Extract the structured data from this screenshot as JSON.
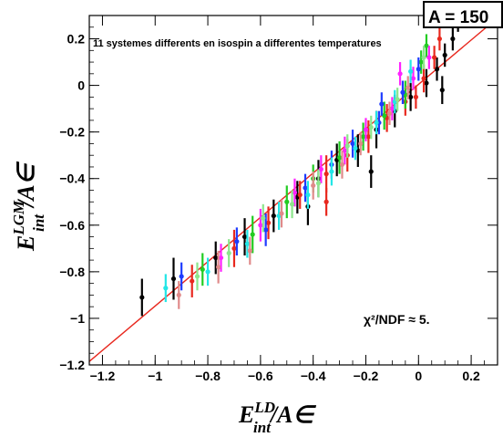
{
  "chart_data": {
    "type": "scatter",
    "title_box": "A = 150",
    "subtitle": "11 systemes differents en isospin a differentes temperatures",
    "fit_annotation": "χ²/NDF ≈ 5.",
    "xlabel": {
      "main": "E",
      "sup": "LD",
      "sub": "int",
      "rest": "/A∈"
    },
    "ylabel": {
      "main": "E",
      "sup": "LGM",
      "sub": "int",
      "rest": "/A∈"
    },
    "xlim": [
      -1.25,
      0.3
    ],
    "ylim": [
      -1.2,
      0.3
    ],
    "xticks": [
      {
        "v": -1.2,
        "label": "−1.2"
      },
      {
        "v": -1.0,
        "label": "−1"
      },
      {
        "v": -0.8,
        "label": "−0.8"
      },
      {
        "v": -0.6,
        "label": "−0.6"
      },
      {
        "v": -0.4,
        "label": "−0.4"
      },
      {
        "v": -0.2,
        "label": "−0.2"
      },
      {
        "v": 0.0,
        "label": "0"
      },
      {
        "v": 0.2,
        "label": "0.2"
      }
    ],
    "yticks": [
      {
        "v": -1.2,
        "label": "−1.2"
      },
      {
        "v": -1.0,
        "label": "−1"
      },
      {
        "v": -0.8,
        "label": "−0.8"
      },
      {
        "v": -0.6,
        "label": "−0.6"
      },
      {
        "v": -0.4,
        "label": "−0.4"
      },
      {
        "v": -0.2,
        "label": "−0.2"
      },
      {
        "v": 0.0,
        "label": "0"
      },
      {
        "v": 0.2,
        "label": "0.2"
      }
    ],
    "fit_line": {
      "color": "#e8281e",
      "x": [
        -1.25,
        0.3
      ],
      "y": [
        -1.185,
        0.29
      ]
    },
    "series": [
      {
        "color": "#000000",
        "points": [
          {
            "x": -1.05,
            "y": -0.91,
            "err": 0.08
          },
          {
            "x": -0.93,
            "y": -0.83,
            "err": 0.09
          },
          {
            "x": -0.77,
            "y": -0.74,
            "err": 0.07
          },
          {
            "x": -0.66,
            "y": -0.65,
            "err": 0.08
          },
          {
            "x": -0.55,
            "y": -0.56,
            "err": 0.07
          },
          {
            "x": -0.46,
            "y": -0.48,
            "err": 0.07
          },
          {
            "x": -0.38,
            "y": -0.4,
            "err": 0.08
          },
          {
            "x": -0.31,
            "y": -0.32,
            "err": 0.07
          },
          {
            "x": -0.23,
            "y": -0.28,
            "err": 0.07
          },
          {
            "x": -0.16,
            "y": -0.19,
            "err": 0.08
          },
          {
            "x": -0.09,
            "y": -0.11,
            "err": 0.07
          },
          {
            "x": -0.03,
            "y": -0.05,
            "err": 0.06
          },
          {
            "x": 0.03,
            "y": 0.01,
            "err": 0.06
          },
          {
            "x": 0.07,
            "y": 0.07,
            "err": 0.05
          },
          {
            "x": 0.1,
            "y": 0.13,
            "err": 0.05
          },
          {
            "x": 0.13,
            "y": 0.2,
            "err": 0.05
          },
          {
            "x": 0.15,
            "y": 0.27,
            "err": 0.04
          },
          {
            "x": 0.09,
            "y": -0.02,
            "err": 0.06
          },
          {
            "x": -0.18,
            "y": -0.37,
            "err": 0.07
          },
          {
            "x": -0.42,
            "y": -0.52,
            "err": 0.08
          }
        ]
      },
      {
        "color": "#e8281e",
        "points": [
          {
            "x": -0.86,
            "y": -0.84,
            "err": 0.07
          },
          {
            "x": -0.7,
            "y": -0.7,
            "err": 0.08
          },
          {
            "x": -0.57,
            "y": -0.59,
            "err": 0.07
          },
          {
            "x": -0.45,
            "y": -0.47,
            "err": 0.06
          },
          {
            "x": -0.35,
            "y": -0.38,
            "err": 0.08
          },
          {
            "x": -0.27,
            "y": -0.3,
            "err": 0.07
          },
          {
            "x": -0.19,
            "y": -0.22,
            "err": 0.07
          },
          {
            "x": -0.12,
            "y": -0.14,
            "err": 0.06
          },
          {
            "x": -0.05,
            "y": -0.07,
            "err": 0.06
          },
          {
            "x": 0.02,
            "y": 0.03,
            "err": 0.06
          },
          {
            "x": 0.06,
            "y": 0.12,
            "err": 0.05
          },
          {
            "x": 0.08,
            "y": 0.2,
            "err": 0.05
          },
          {
            "x": -0.01,
            "y": -0.05,
            "err": 0.05
          },
          {
            "x": -0.35,
            "y": -0.5,
            "err": 0.06
          }
        ]
      },
      {
        "color": "#22cc22",
        "points": [
          {
            "x": -0.82,
            "y": -0.79,
            "err": 0.07
          },
          {
            "x": -0.63,
            "y": -0.64,
            "err": 0.08
          },
          {
            "x": -0.5,
            "y": -0.5,
            "err": 0.07
          },
          {
            "x": -0.4,
            "y": -0.4,
            "err": 0.06
          },
          {
            "x": -0.3,
            "y": -0.31,
            "err": 0.07
          },
          {
            "x": -0.21,
            "y": -0.22,
            "err": 0.06
          },
          {
            "x": -0.13,
            "y": -0.13,
            "err": 0.06
          },
          {
            "x": -0.05,
            "y": -0.04,
            "err": 0.06
          },
          {
            "x": 0.01,
            "y": 0.1,
            "err": 0.05
          },
          {
            "x": 0.03,
            "y": 0.17,
            "err": 0.05
          }
        ]
      },
      {
        "color": "#1e3cff",
        "points": [
          {
            "x": -0.9,
            "y": -0.82,
            "err": 0.06
          },
          {
            "x": -0.69,
            "y": -0.67,
            "err": 0.06
          },
          {
            "x": -0.58,
            "y": -0.62,
            "err": 0.07
          },
          {
            "x": -0.43,
            "y": -0.44,
            "err": 0.06
          },
          {
            "x": -0.33,
            "y": -0.34,
            "err": 0.06
          },
          {
            "x": -0.25,
            "y": -0.25,
            "err": 0.06
          },
          {
            "x": -0.15,
            "y": -0.16,
            "err": 0.05
          },
          {
            "x": -0.06,
            "y": -0.03,
            "err": 0.05
          },
          {
            "x": 0.0,
            "y": 0.07,
            "err": 0.05
          },
          {
            "x": -0.14,
            "y": -0.08,
            "err": 0.05
          }
        ]
      },
      {
        "color": "#ff22ff",
        "points": [
          {
            "x": -0.75,
            "y": -0.74,
            "err": 0.06
          },
          {
            "x": -0.6,
            "y": -0.6,
            "err": 0.07
          },
          {
            "x": -0.47,
            "y": -0.46,
            "err": 0.06
          },
          {
            "x": -0.37,
            "y": -0.36,
            "err": 0.06
          },
          {
            "x": -0.28,
            "y": -0.28,
            "err": 0.06
          },
          {
            "x": -0.2,
            "y": -0.19,
            "err": 0.05
          },
          {
            "x": -0.1,
            "y": -0.1,
            "err": 0.05
          },
          {
            "x": -0.02,
            "y": 0.03,
            "err": 0.05
          },
          {
            "x": 0.04,
            "y": 0.12,
            "err": 0.05
          },
          {
            "x": -0.07,
            "y": 0.05,
            "err": 0.05
          }
        ]
      },
      {
        "color": "#22e6e6",
        "points": [
          {
            "x": -0.96,
            "y": -0.87,
            "err": 0.06
          },
          {
            "x": -0.8,
            "y": -0.8,
            "err": 0.06
          },
          {
            "x": -0.65,
            "y": -0.68,
            "err": 0.06
          },
          {
            "x": -0.53,
            "y": -0.56,
            "err": 0.06
          },
          {
            "x": -0.42,
            "y": -0.47,
            "err": 0.06
          },
          {
            "x": -0.33,
            "y": -0.37,
            "err": 0.06
          },
          {
            "x": -0.24,
            "y": -0.27,
            "err": 0.05
          },
          {
            "x": -0.16,
            "y": -0.16,
            "err": 0.05
          },
          {
            "x": -0.09,
            "y": -0.07,
            "err": 0.05
          },
          {
            "x": -0.03,
            "y": 0.06,
            "err": 0.05
          }
        ]
      },
      {
        "color": "#e08a8a",
        "points": [
          {
            "x": -0.91,
            "y": -0.9,
            "err": 0.06
          },
          {
            "x": -0.76,
            "y": -0.78,
            "err": 0.07
          },
          {
            "x": -0.64,
            "y": -0.71,
            "err": 0.06
          },
          {
            "x": -0.52,
            "y": -0.55,
            "err": 0.06
          },
          {
            "x": -0.4,
            "y": -0.43,
            "err": 0.06
          },
          {
            "x": -0.29,
            "y": -0.34,
            "err": 0.06
          },
          {
            "x": -0.22,
            "y": -0.25,
            "err": 0.05
          },
          {
            "x": -0.11,
            "y": -0.12,
            "err": 0.05
          },
          {
            "x": -0.04,
            "y": -0.01,
            "err": 0.05
          }
        ]
      },
      {
        "color": "#8ce68c",
        "points": [
          {
            "x": -0.84,
            "y": -0.82,
            "err": 0.06
          },
          {
            "x": -0.72,
            "y": -0.72,
            "err": 0.06
          },
          {
            "x": -0.59,
            "y": -0.57,
            "err": 0.06
          },
          {
            "x": -0.48,
            "y": -0.51,
            "err": 0.06
          },
          {
            "x": -0.38,
            "y": -0.42,
            "err": 0.06
          },
          {
            "x": -0.27,
            "y": -0.26,
            "err": 0.05
          },
          {
            "x": -0.18,
            "y": -0.18,
            "err": 0.05
          },
          {
            "x": -0.08,
            "y": -0.06,
            "err": 0.05
          },
          {
            "x": 0.02,
            "y": 0.12,
            "err": 0.05
          }
        ]
      }
    ]
  }
}
